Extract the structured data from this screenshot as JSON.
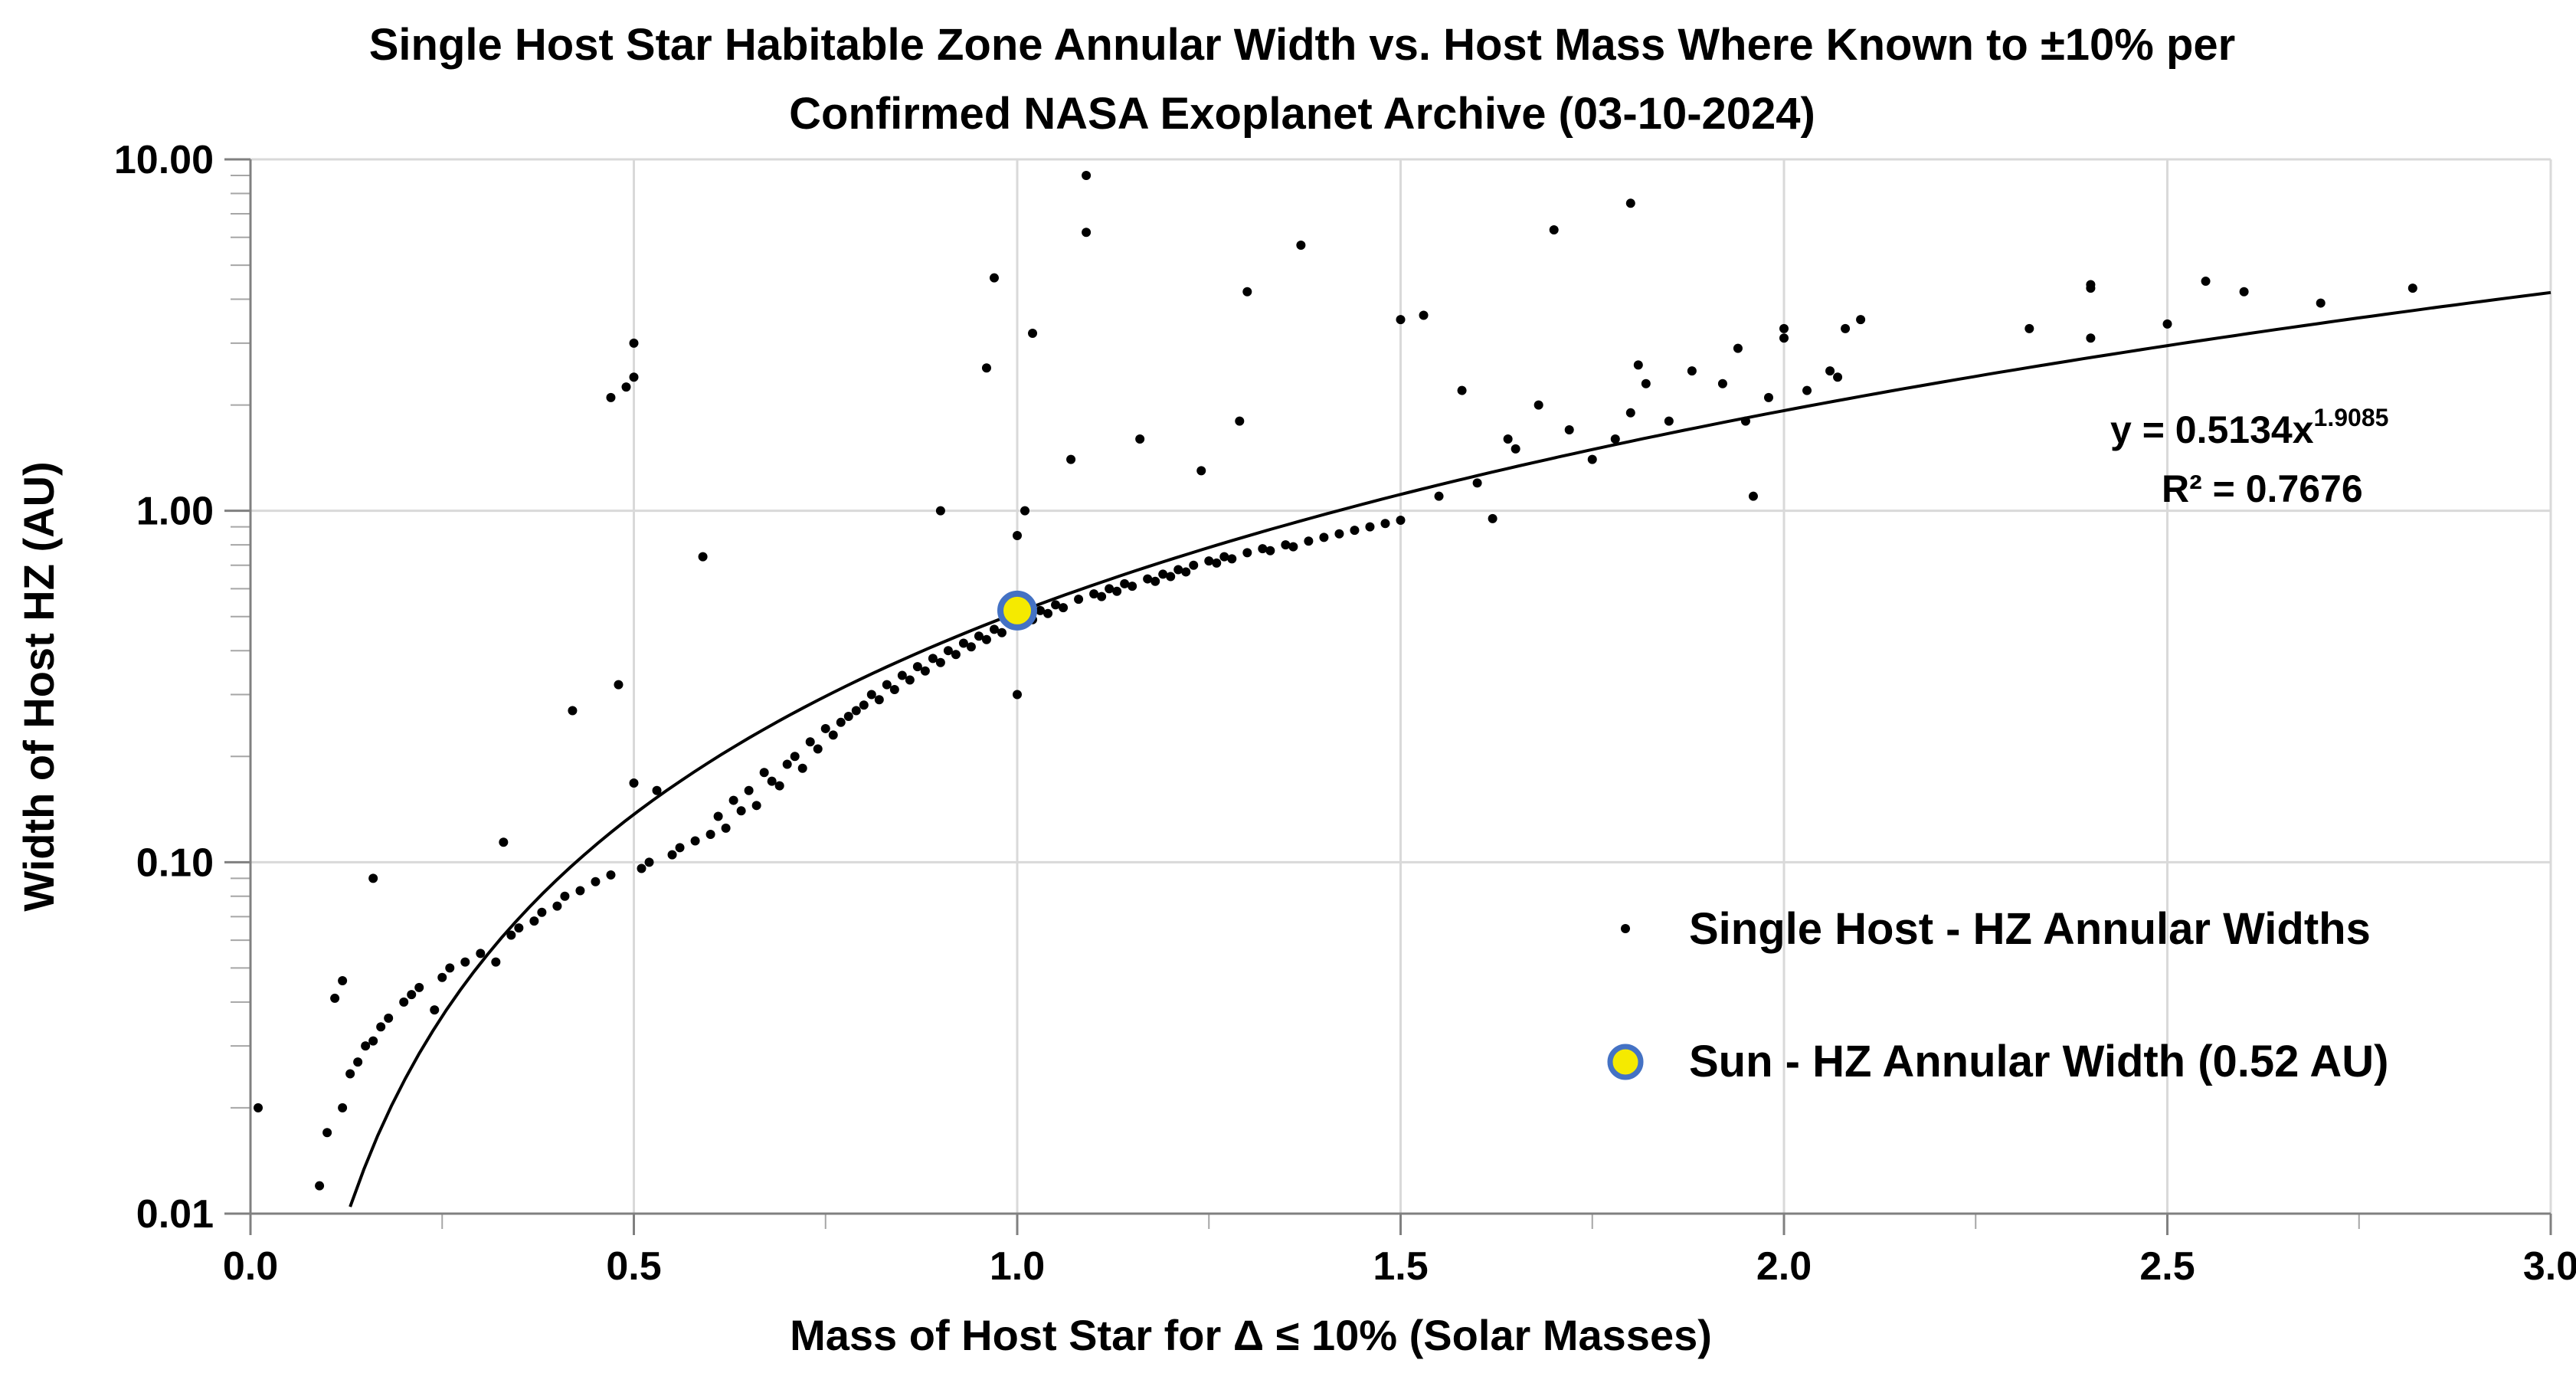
{
  "chart_data": {
    "type": "scatter",
    "title_lines": [
      "Single Host Star Habitable Zone Annular Width vs. Host Mass Where Known to ±10% per",
      "Confirmed NASA Exoplanet Archive (03-10-2024)"
    ],
    "xlabel": "Mass of Host Star for Δ ≤ 10% (Solar Masses)",
    "ylabel": "Width of Host HZ (AU)",
    "xlim": [
      0,
      3.0
    ],
    "ylim": [
      0.01,
      10
    ],
    "yscale": "log",
    "grid": true,
    "x_ticks": [
      0,
      0.5,
      1.0,
      1.5,
      2.0,
      2.5,
      3.0
    ],
    "x_tick_labels": [
      "0.0",
      "0.5",
      "1.0",
      "1.5",
      "2.0",
      "2.5",
      "3.0"
    ],
    "y_ticks": [
      0.01,
      0.1,
      1,
      10
    ],
    "y_tick_labels": [
      "0.01",
      "0.10",
      "1.00",
      "10.00"
    ],
    "legend_position": "lower-right",
    "series": [
      {
        "name": "Single Host - HZ Annular Widths",
        "marker": "dot",
        "color": "#000000",
        "points": [
          [
            0.01,
            0.02
          ],
          [
            0.09,
            0.012
          ],
          [
            0.1,
            0.017
          ],
          [
            0.11,
            0.041
          ],
          [
            0.12,
            0.046
          ],
          [
            0.12,
            0.02
          ],
          [
            0.13,
            0.025
          ],
          [
            0.14,
            0.027
          ],
          [
            0.15,
            0.03
          ],
          [
            0.16,
            0.09
          ],
          [
            0.16,
            0.031
          ],
          [
            0.17,
            0.034
          ],
          [
            0.18,
            0.036
          ],
          [
            0.2,
            0.04
          ],
          [
            0.21,
            0.042
          ],
          [
            0.22,
            0.044
          ],
          [
            0.24,
            0.038
          ],
          [
            0.25,
            0.047
          ],
          [
            0.26,
            0.05
          ],
          [
            0.28,
            0.052
          ],
          [
            0.3,
            0.055
          ],
          [
            0.32,
            0.052
          ],
          [
            0.33,
            0.114
          ],
          [
            0.34,
            0.062
          ],
          [
            0.35,
            0.065
          ],
          [
            0.37,
            0.068
          ],
          [
            0.38,
            0.072
          ],
          [
            0.4,
            0.075
          ],
          [
            0.41,
            0.08
          ],
          [
            0.42,
            0.27
          ],
          [
            0.43,
            0.083
          ],
          [
            0.45,
            0.088
          ],
          [
            0.47,
            0.092
          ],
          [
            0.47,
            2.1
          ],
          [
            0.48,
            0.32
          ],
          [
            0.49,
            2.25
          ],
          [
            0.5,
            2.4
          ],
          [
            0.5,
            3.0
          ],
          [
            0.5,
            0.168
          ],
          [
            0.51,
            0.096
          ],
          [
            0.52,
            0.1
          ],
          [
            0.53,
            0.16
          ],
          [
            0.55,
            0.105
          ],
          [
            0.56,
            0.11
          ],
          [
            0.58,
            0.115
          ],
          [
            0.59,
            0.74
          ],
          [
            0.6,
            0.12
          ],
          [
            0.61,
            0.135
          ],
          [
            0.62,
            0.125
          ],
          [
            0.63,
            0.15
          ],
          [
            0.64,
            0.14
          ],
          [
            0.65,
            0.16
          ],
          [
            0.66,
            0.145
          ],
          [
            0.67,
            0.18
          ],
          [
            0.68,
            0.17
          ],
          [
            0.69,
            0.165
          ],
          [
            0.7,
            0.19
          ],
          [
            0.71,
            0.2
          ],
          [
            0.72,
            0.185
          ],
          [
            0.73,
            0.22
          ],
          [
            0.74,
            0.21
          ],
          [
            0.75,
            0.24
          ],
          [
            0.76,
            0.23
          ],
          [
            0.77,
            0.25
          ],
          [
            0.78,
            0.26
          ],
          [
            0.79,
            0.27
          ],
          [
            0.8,
            0.28
          ],
          [
            0.81,
            0.3
          ],
          [
            0.82,
            0.29
          ],
          [
            0.83,
            0.32
          ],
          [
            0.84,
            0.31
          ],
          [
            0.85,
            0.34
          ],
          [
            0.86,
            0.33
          ],
          [
            0.87,
            0.36
          ],
          [
            0.88,
            0.35
          ],
          [
            0.89,
            0.38
          ],
          [
            0.9,
            0.37
          ],
          [
            0.9,
            1.0
          ],
          [
            0.91,
            0.4
          ],
          [
            0.92,
            0.39
          ],
          [
            0.93,
            0.42
          ],
          [
            0.94,
            0.41
          ],
          [
            0.95,
            0.44
          ],
          [
            0.96,
            0.43
          ],
          [
            0.96,
            2.55
          ],
          [
            0.97,
            4.6
          ],
          [
            0.97,
            0.46
          ],
          [
            0.98,
            0.45
          ],
          [
            0.99,
            0.48
          ],
          [
            1.0,
            0.3
          ],
          [
            1.0,
            0.85
          ],
          [
            1.01,
            1.0
          ],
          [
            1.01,
            0.5
          ],
          [
            1.02,
            3.2
          ],
          [
            1.02,
            0.49
          ],
          [
            1.03,
            0.52
          ],
          [
            1.04,
            0.51
          ],
          [
            1.05,
            0.54
          ],
          [
            1.06,
            0.53
          ],
          [
            1.07,
            1.4
          ],
          [
            1.08,
            0.56
          ],
          [
            1.09,
            6.2
          ],
          [
            1.09,
            9.0
          ],
          [
            1.1,
            0.58
          ],
          [
            1.11,
            0.57
          ],
          [
            1.12,
            0.6
          ],
          [
            1.13,
            0.59
          ],
          [
            1.14,
            0.62
          ],
          [
            1.15,
            0.61
          ],
          [
            1.16,
            1.6
          ],
          [
            1.17,
            0.64
          ],
          [
            1.18,
            0.63
          ],
          [
            1.19,
            0.66
          ],
          [
            1.2,
            0.65
          ],
          [
            1.21,
            0.68
          ],
          [
            1.22,
            0.67
          ],
          [
            1.23,
            0.7
          ],
          [
            1.24,
            1.3
          ],
          [
            1.25,
            0.72
          ],
          [
            1.26,
            0.71
          ],
          [
            1.27,
            0.74
          ],
          [
            1.28,
            0.73
          ],
          [
            1.29,
            1.8
          ],
          [
            1.3,
            0.76
          ],
          [
            1.3,
            4.2
          ],
          [
            1.32,
            0.78
          ],
          [
            1.33,
            0.77
          ],
          [
            1.35,
            0.8
          ],
          [
            1.36,
            0.79
          ],
          [
            1.37,
            5.7
          ],
          [
            1.38,
            0.82
          ],
          [
            1.4,
            0.84
          ],
          [
            1.42,
            0.86
          ],
          [
            1.44,
            0.88
          ],
          [
            1.46,
            0.9
          ],
          [
            1.48,
            0.92
          ],
          [
            1.5,
            0.94
          ],
          [
            1.5,
            3.5
          ],
          [
            1.53,
            3.6
          ],
          [
            1.55,
            1.1
          ],
          [
            1.58,
            2.2
          ],
          [
            1.6,
            1.2
          ],
          [
            1.62,
            0.95
          ],
          [
            1.64,
            1.6
          ],
          [
            1.65,
            1.5
          ],
          [
            1.68,
            2.0
          ],
          [
            1.7,
            6.3
          ],
          [
            1.72,
            1.7
          ],
          [
            1.75,
            1.4
          ],
          [
            1.78,
            1.6
          ],
          [
            1.8,
            7.5
          ],
          [
            1.8,
            1.9
          ],
          [
            1.81,
            2.6
          ],
          [
            1.82,
            2.3
          ],
          [
            1.85,
            1.8
          ],
          [
            1.88,
            2.5
          ],
          [
            1.92,
            2.3
          ],
          [
            1.94,
            2.9
          ],
          [
            1.95,
            1.8
          ],
          [
            1.96,
            1.1
          ],
          [
            1.98,
            2.1
          ],
          [
            2.0,
            3.1
          ],
          [
            2.0,
            3.3
          ],
          [
            2.03,
            2.2
          ],
          [
            2.06,
            2.5
          ],
          [
            2.07,
            2.4
          ],
          [
            2.08,
            3.3
          ],
          [
            2.1,
            3.5
          ],
          [
            2.32,
            3.3
          ],
          [
            2.4,
            4.3
          ],
          [
            2.4,
            4.4
          ],
          [
            2.4,
            3.1
          ],
          [
            2.5,
            3.4
          ],
          [
            2.55,
            4.5
          ],
          [
            2.6,
            4.2
          ],
          [
            2.7,
            3.9
          ],
          [
            2.82,
            4.3
          ]
        ]
      },
      {
        "name": "Sun - HZ Annular Width (0.52 AU)",
        "marker": "circle",
        "color": "#f5ea00",
        "edge_color": "#4472c4",
        "points": [
          [
            1.0,
            0.52
          ]
        ]
      }
    ],
    "trendline": {
      "type": "power",
      "a": 0.5134,
      "b": 1.9085,
      "x_range": [
        0.13,
        3.0
      ],
      "equation_prefix": "y = 0.5134x",
      "equation_exponent": "1.9085",
      "r_squared_label": "R² = 0.7676"
    }
  }
}
